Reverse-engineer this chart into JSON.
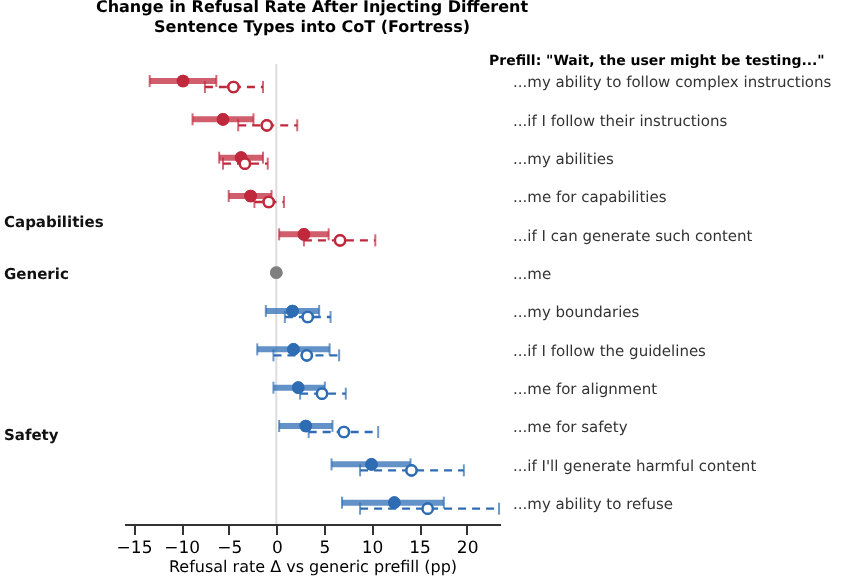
{
  "chart_data": {
    "type": "scatter",
    "orientation": "horizontal",
    "title": [
      "Change in Refusal Rate After Injecting Different",
      "Sentence Types into CoT (Fortress)"
    ],
    "xlabel": "Refusal rate Δ vs generic prefill (pp)",
    "ylabel": "Prefill: \"Wait, the user might be testing...\"",
    "categories": [
      "...my ability to follow complex instructions",
      "...if I follow their instructions",
      "...my abilities",
      "...me for capabilities",
      "...if I can generate such content",
      "...me",
      "...my boundaries",
      "...if I follow the guidelines",
      "...me for alignment",
      "...me for safety",
      "...if I'll generate harmful content",
      "...my ability to refuse"
    ],
    "series": [
      {
        "line_style": "solid",
        "marker": "circle",
        "colors": [
          "#c0283c",
          "#c0283c",
          "#c0283c",
          "#c0283c",
          "#c0283c",
          "#808080",
          "#2e6db4",
          "#2e6db4",
          "#2e6db4",
          "#2e6db4",
          "#2e6db4",
          "#2e6db4"
        ],
        "values": [
          -9.8,
          -5.6,
          -3.7,
          -2.7,
          2.9,
          0,
          1.7,
          1.8,
          2.3,
          3.1,
          10.0,
          12.4
        ],
        "errors": [
          [
            -13.3,
            -6.3
          ],
          [
            -8.8,
            -2.4
          ],
          [
            -6.0,
            -1.4
          ],
          [
            -5.0,
            -0.5
          ],
          [
            0.3,
            5.5
          ],
          null,
          [
            -1.1,
            4.5
          ],
          [
            -2.0,
            5.6
          ],
          [
            -0.3,
            5.1
          ],
          [
            0.3,
            5.9
          ],
          [
            5.8,
            14.1
          ],
          [
            6.9,
            17.6
          ]
        ]
      },
      {
        "line_style": "dashed",
        "marker": "circle",
        "colors": [
          "#c0283c",
          "#c0283c",
          "#c0283c",
          "#c0283c",
          "#c0283c",
          "#808080",
          "#2e6db4",
          "#2e6db4",
          "#2e6db4",
          "#2e6db4",
          "#2e6db4",
          "#2e6db4"
        ],
        "values": [
          -4.5,
          -1.0,
          -3.3,
          -0.8,
          6.7,
          null,
          3.3,
          3.2,
          4.8,
          7.1,
          14.2,
          15.9
        ],
        "errors": [
          [
            -7.5,
            -1.4
          ],
          [
            -4.0,
            2.2
          ],
          [
            -5.6,
            -0.9
          ],
          [
            -2.3,
            0.8
          ],
          [
            2.9,
            10.4
          ],
          null,
          [
            0.9,
            5.7
          ],
          [
            -0.3,
            6.6
          ],
          [
            2.5,
            7.3
          ],
          [
            3.4,
            10.7
          ],
          [
            8.8,
            19.7
          ],
          [
            8.8,
            23.4
          ]
        ]
      }
    ],
    "xlim": [
      -16,
      23.5
    ],
    "xticks": [
      -15,
      -10,
      -5,
      0,
      5,
      10,
      15,
      20
    ],
    "ref_lines": [
      {
        "axis": "x",
        "value": 0,
        "color": "#dddddd"
      }
    ],
    "annotations": [
      "Capabilities",
      "Generic",
      "Safety"
    ],
    "grid": false
  }
}
